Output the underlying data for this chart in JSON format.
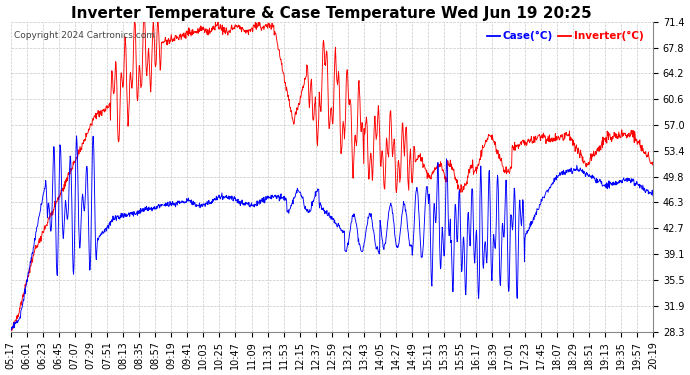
{
  "title": "Inverter Temperature & Case Temperature Wed Jun 19 20:25",
  "copyright": "Copyright 2024 Cartronics.com",
  "legend_case": "Case(°C)",
  "legend_inverter": "Inverter(°C)",
  "y_ticks": [
    28.3,
    31.9,
    35.5,
    39.1,
    42.7,
    46.3,
    49.8,
    53.4,
    57.0,
    60.6,
    64.2,
    67.8,
    71.4
  ],
  "ylim": [
    28.3,
    71.4
  ],
  "x_labels": [
    "05:17",
    "06:01",
    "06:23",
    "06:45",
    "07:07",
    "07:29",
    "07:51",
    "08:13",
    "08:35",
    "08:57",
    "09:19",
    "09:41",
    "10:03",
    "10:25",
    "10:47",
    "11:09",
    "11:31",
    "11:53",
    "12:15",
    "12:37",
    "12:59",
    "13:21",
    "13:43",
    "14:05",
    "14:27",
    "14:49",
    "15:11",
    "15:33",
    "15:55",
    "16:17",
    "16:39",
    "17:01",
    "17:23",
    "17:45",
    "18:07",
    "18:29",
    "18:51",
    "19:13",
    "19:35",
    "19:57",
    "20:19"
  ],
  "color_case": "#0000FF",
  "color_inverter": "#FF0000",
  "background_color": "#ffffff",
  "grid_color": "#c8c8c8",
  "title_fontsize": 11,
  "tick_fontsize": 7
}
